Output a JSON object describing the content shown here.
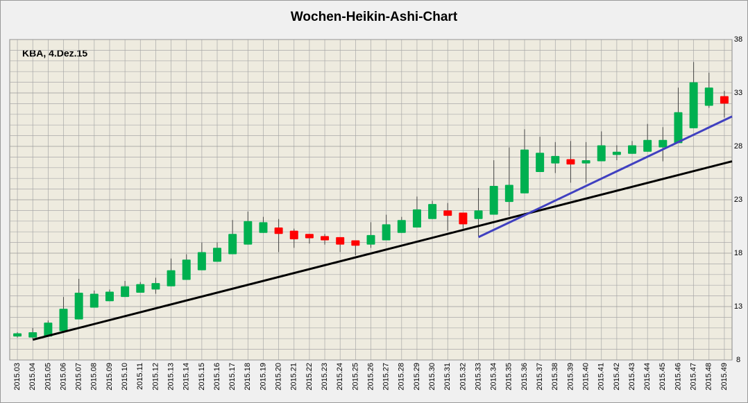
{
  "chart_data": {
    "type": "candlestick",
    "title": "Wochen-Heikin-Ashi-Chart",
    "annotation": "KBA, 4.Dez.15",
    "categories": [
      "2015.03",
      "2015.04",
      "2015.05",
      "2015.06",
      "2015.07",
      "2015.08",
      "2015.09",
      "2015.10",
      "2015.11",
      "2015.12",
      "2015.13",
      "2015.14",
      "2015.15",
      "2015.16",
      "2015.17",
      "2015.18",
      "2015.19",
      "2015.20",
      "2015.21",
      "2015.22",
      "2015.23",
      "2015.24",
      "2015.25",
      "2015.26",
      "2015.27",
      "2015.28",
      "2015.29",
      "2015.30",
      "2015.31",
      "2015.32",
      "2015.33",
      "2015.34",
      "2015.35",
      "2015.36",
      "2015.37",
      "2015.38",
      "2015.39",
      "2015.40",
      "2015.41",
      "2015.42",
      "2015.43",
      "2015.44",
      "2015.45",
      "2015.46",
      "2015.47",
      "2015.48",
      "2015.49"
    ],
    "open": [
      10.2,
      10.1,
      10.2,
      10.7,
      11.8,
      12.9,
      13.5,
      13.9,
      14.3,
      14.6,
      14.9,
      15.5,
      16.4,
      17.2,
      17.9,
      18.8,
      19.9,
      20.4,
      20.1,
      19.8,
      19.6,
      19.5,
      19.2,
      18.8,
      19.2,
      19.9,
      20.4,
      21.2,
      22.0,
      21.8,
      21.2,
      21.6,
      22.8,
      23.6,
      25.6,
      26.4,
      26.8,
      26.4,
      26.6,
      27.2,
      27.3,
      27.5,
      27.9,
      28.3,
      29.7,
      31.8,
      32.7
    ],
    "high": [
      10.6,
      11.0,
      11.7,
      13.9,
      15.6,
      14.5,
      14.6,
      15.4,
      15.3,
      15.7,
      17.5,
      17.9,
      19.0,
      19.0,
      21.1,
      21.9,
      21.4,
      21.2,
      20.3,
      19.8,
      19.8,
      19.5,
      19.2,
      20.9,
      21.6,
      21.4,
      23.3,
      22.9,
      22.7,
      21.8,
      24.1,
      26.7,
      27.9,
      29.6,
      28.9,
      28.4,
      28.5,
      28.4,
      29.4,
      28.1,
      28.5,
      30.1,
      29.8,
      33.5,
      35.9,
      34.9,
      33.2
    ],
    "low": [
      10.1,
      10.0,
      10.2,
      10.6,
      11.8,
      12.9,
      13.5,
      13.9,
      14.3,
      14.2,
      14.9,
      15.5,
      16.4,
      17.2,
      17.9,
      18.8,
      19.9,
      18.1,
      18.5,
      18.9,
      18.8,
      18.1,
      17.8,
      18.5,
      19.2,
      19.9,
      20.4,
      21.2,
      20.1,
      20.3,
      19.6,
      21.6,
      21.5,
      23.6,
      25.6,
      25.5,
      24.6,
      24.6,
      26.6,
      26.7,
      27.3,
      27.5,
      26.6,
      28.3,
      29.7,
      31.6,
      30.7
    ],
    "close": [
      10.5,
      10.6,
      11.5,
      12.8,
      14.3,
      14.2,
      14.4,
      14.9,
      15.1,
      15.2,
      16.4,
      17.4,
      18.1,
      18.5,
      19.8,
      21.0,
      20.9,
      19.8,
      19.3,
      19.4,
      19.2,
      18.8,
      18.7,
      19.7,
      20.7,
      21.1,
      22.1,
      22.6,
      21.5,
      20.7,
      22.0,
      24.3,
      24.4,
      27.7,
      27.4,
      27.1,
      26.3,
      26.7,
      28.1,
      27.5,
      28.1,
      28.6,
      28.6,
      31.2,
      34.0,
      33.5,
      32.0
    ],
    "up_color": "#00b050",
    "down_color": "#ff0000",
    "trendlines": [
      {
        "color": "#000000",
        "start": [
          1,
          9.9
        ],
        "end": [
          47,
          26.6
        ]
      },
      {
        "color": "#4040c0",
        "start": [
          30,
          19.5
        ],
        "end": [
          47,
          30.8
        ]
      }
    ],
    "ylim": [
      8,
      38
    ],
    "yticks": [
      8,
      13,
      18,
      23,
      28,
      33,
      38
    ],
    "minor_yticks": [
      9,
      10,
      11,
      12,
      14,
      15,
      16,
      17,
      19,
      20,
      21,
      22,
      24,
      25,
      26,
      27,
      29,
      30,
      31,
      32,
      34,
      35,
      36,
      37
    ],
    "grid": true
  }
}
